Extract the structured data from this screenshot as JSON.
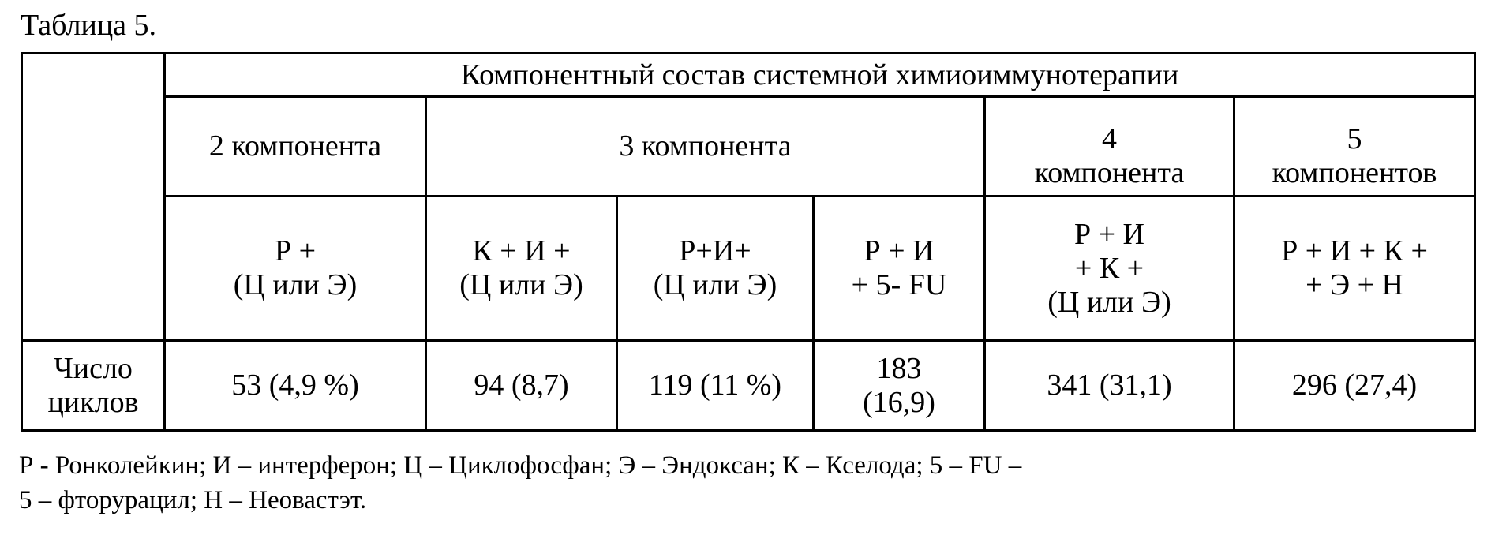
{
  "title": "Таблица 5.",
  "table": {
    "group_header": "Компонентный состав системной химиоиммунотерапии",
    "component_groups": [
      {
        "lines": [
          "2 компонента"
        ]
      },
      {
        "lines": [
          "3 компонента"
        ]
      },
      {
        "lines": [
          "4",
          "компонента"
        ]
      },
      {
        "lines": [
          "5",
          "компонентов"
        ]
      }
    ],
    "regimens": [
      {
        "lines": [
          "Р +",
          "(Ц или Э)"
        ]
      },
      {
        "lines": [
          "К + И +",
          "(Ц или Э)"
        ]
      },
      {
        "lines": [
          "Р+И+",
          "(Ц или Э)"
        ]
      },
      {
        "lines": [
          "Р + И",
          "+ 5- FU"
        ]
      },
      {
        "lines": [
          "Р + И",
          "+ К +",
          "(Ц или Э)"
        ]
      },
      {
        "lines": [
          "Р + И + К +",
          "+ Э + Н"
        ]
      }
    ],
    "row_label": [
      "Число",
      "циклов"
    ],
    "values": [
      {
        "lines": [
          "53 (4,9 %)"
        ]
      },
      {
        "lines": [
          "94 (8,7)"
        ]
      },
      {
        "lines": [
          "119 (11 %)"
        ]
      },
      {
        "lines": [
          "183",
          "(16,9)"
        ]
      },
      {
        "lines": [
          "341 (31,1)"
        ]
      },
      {
        "lines": [
          "296 (27,4)"
        ]
      }
    ]
  },
  "footnote": [
    "Р - Ронколейкин; И – интерферон; Ц – Циклофосфан; Э – Эндоксан; К – Кселода; 5 – FU –",
    "5 – фторурацил; Н – Неовастэт."
  ]
}
